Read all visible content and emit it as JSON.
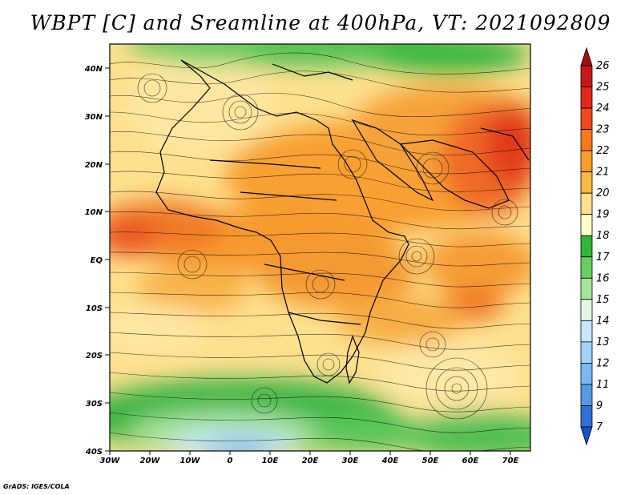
{
  "title": "WBPT [C] and Sreamline at 400hPa, VT: 2021092809",
  "credit": "GrADS: IGES/COLA",
  "map": {
    "variable": "Wet-bulb potential temperature",
    "level": "400hPa",
    "lon_range": [
      -30,
      75
    ],
    "lat_range": [
      -40,
      45
    ],
    "lat_labels": [
      "40N",
      "30N",
      "20N",
      "10N",
      "EQ",
      "10S",
      "20S",
      "30S",
      "40S"
    ],
    "lon_labels": [
      "30W",
      "20W",
      "10W",
      "0",
      "10E",
      "20E",
      "30E",
      "40E",
      "50E",
      "60E",
      "70E"
    ]
  },
  "colorbar": {
    "labels": [
      "26",
      "25",
      "24",
      "23",
      "22",
      "21",
      "20",
      "19",
      "18",
      "17",
      "16",
      "15",
      "14",
      "13",
      "12",
      "11",
      "9",
      "7"
    ],
    "colors": [
      "#a50f0f",
      "#c81818",
      "#e3281b",
      "#f0481e",
      "#f5781f",
      "#f89d2a",
      "#fbb944",
      "#fde08e",
      "#ffffc6",
      "#2fb53a",
      "#69cd63",
      "#a6e29b",
      "#e2f8e6",
      "#c6e8fa",
      "#a2d3f6",
      "#7bb8f0",
      "#5699e6",
      "#2f70d6",
      "#1552c7"
    ]
  }
}
